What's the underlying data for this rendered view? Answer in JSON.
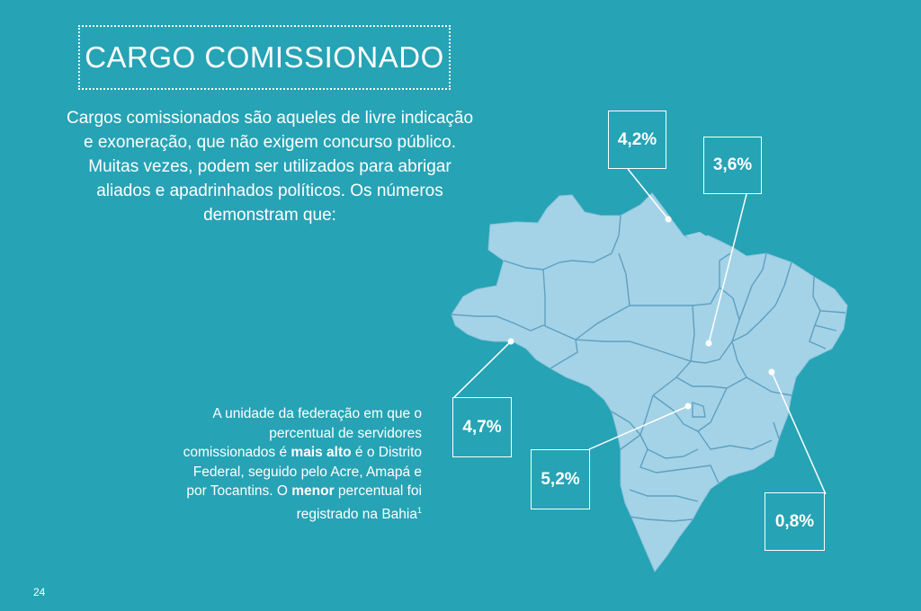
{
  "title": "CARGO COMISSIONADO",
  "intro": "Cargos comissionados são aqueles de livre indicação e exoneração, que não exigem concurso público. Muitas vezes, podem ser utilizados para abrigar aliados e apadrinhados políticos. Os números demonstram que:",
  "note": {
    "part1": "A unidade da federação em que o percentual de servidores comissionados é ",
    "bold1": "mais alto",
    "part2": " é o Distrito Federal, seguido pelo Acre, Amapá e por Tocantins. O ",
    "bold2": "menor",
    "part3": " percentual foi registrado na Bahia",
    "footnote": "1"
  },
  "callouts": {
    "amapa": "4,2%",
    "tocantins": "3,6%",
    "acre": "4,7%",
    "distrito_federal": "5,2%",
    "bahia": "0,8%"
  },
  "page_number": "24",
  "colors": {
    "background": "#26a3b5",
    "map_fill": "#a4d3e8",
    "map_border": "#5f9fc0"
  }
}
